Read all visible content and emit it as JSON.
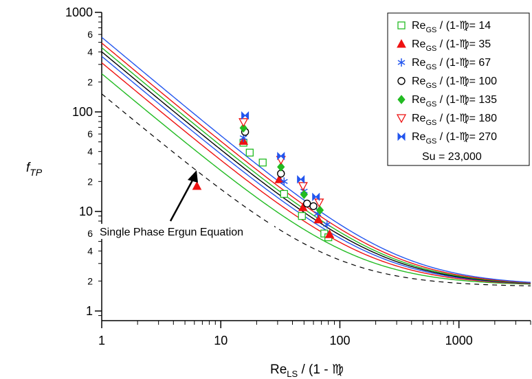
{
  "chart_data": {
    "type": "scatter",
    "title": "",
    "xlabel": "Re / (1 - ε)",
    "xlabel_parts": {
      "base": "Re",
      "sub": "LS",
      "rest": " / (1 - ",
      "glyph": "♍",
      "tail": ""
    },
    "ylabel": "f_TP",
    "ylabel_parts": {
      "base": "f",
      "sub": "TP"
    },
    "x_scale": "log",
    "y_scale": "log",
    "xlim": [
      1,
      4000
    ],
    "ylim": [
      0.8,
      1000
    ],
    "x_major_ticks": [
      1,
      10,
      100,
      1000
    ],
    "x_major_labels": [
      "1",
      "10",
      "100",
      "1000"
    ],
    "y_major_ticks": [
      1,
      10,
      100,
      1000
    ],
    "y_major_labels": [
      "1",
      "10",
      "100",
      "1000"
    ],
    "y_minor_labeled": [
      2,
      4,
      6,
      20,
      40,
      60,
      200,
      400,
      600
    ],
    "y_minor_labels": [
      "2",
      "4",
      "6",
      "2",
      "4",
      "6",
      "2",
      "4",
      "6"
    ],
    "grid": false,
    "legend_position": "top-right",
    "legend_label_prefix": "Re",
    "legend_label_sub": "GS",
    "legend_label_mid": " / (1-",
    "legend_label_glyph": "♍",
    "legend_label_eq": "= ",
    "legend_note": "Su = 23,000",
    "annotation": "Single Phase Ergun Equation",
    "asymptote": 1.8,
    "ergun_curve": {
      "A": 150,
      "B": 1.75,
      "style": "dashed",
      "color": "#000000"
    },
    "series": [
      {
        "name": "14",
        "marker": "square-open",
        "color": "#22bb22",
        "curve_A": 240,
        "points": [
          [
            15.5,
            49
          ],
          [
            17.5,
            39
          ],
          [
            22.5,
            31
          ],
          [
            34,
            15
          ],
          [
            48,
            9
          ],
          [
            74,
            6
          ],
          [
            80,
            5.5
          ]
        ]
      },
      {
        "name": "35",
        "marker": "triangle-filled",
        "color": "#ee1111",
        "curve_A": 310,
        "points": [
          [
            6.3,
            18
          ],
          [
            15.5,
            51
          ],
          [
            31,
            21
          ],
          [
            49,
            11
          ],
          [
            66,
            8.3
          ],
          [
            82,
            5.9
          ]
        ]
      },
      {
        "name": "67",
        "marker": "asterisk",
        "color": "#2255ee",
        "curve_A": 360,
        "points": [
          [
            15.5,
            55
          ],
          [
            34,
            20
          ],
          [
            50,
            16
          ],
          [
            65,
            9.5
          ],
          [
            78,
            7.4
          ]
        ]
      },
      {
        "name": "100",
        "marker": "circle-open",
        "color": "#000000",
        "curve_A": 400,
        "points": [
          [
            16,
            63
          ],
          [
            32,
            24
          ],
          [
            53,
            12
          ],
          [
            60,
            11.3
          ]
        ]
      },
      {
        "name": "135",
        "marker": "diamond-filled",
        "color": "#22bb22",
        "curve_A": 440,
        "points": [
          [
            15.5,
            69
          ],
          [
            32,
            28
          ],
          [
            50,
            14.8
          ],
          [
            68,
            10.3
          ]
        ]
      },
      {
        "name": "180",
        "marker": "triangle-open-down",
        "color": "#ee1111",
        "curve_A": 490,
        "points": [
          [
            15.5,
            79
          ],
          [
            32,
            33
          ],
          [
            49,
            18
          ],
          [
            67,
            12.3
          ]
        ]
      },
      {
        "name": "270",
        "marker": "bowtie",
        "color": "#2255ee",
        "curve_A": 560,
        "points": [
          [
            16,
            92
          ],
          [
            32,
            36
          ],
          [
            47,
            21
          ],
          [
            63,
            14
          ]
        ]
      }
    ]
  }
}
